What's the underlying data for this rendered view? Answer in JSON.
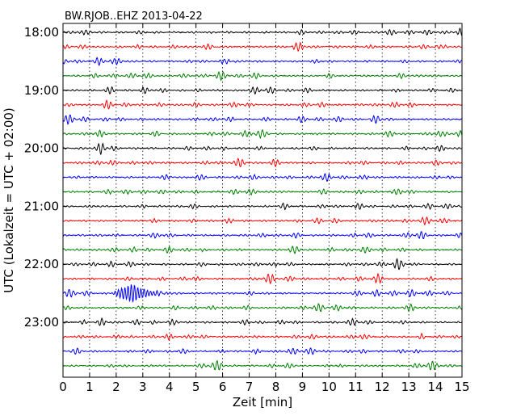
{
  "chart_data": {
    "type": "line",
    "title": "BW.RJOB..EHZ 2013-04-22",
    "xlabel": "Zeit  [min]",
    "ylabel": "UTC (Lokalzeit = UTC + 02:00)",
    "xlim": [
      0,
      15
    ],
    "xticks": [
      0,
      1,
      2,
      3,
      4,
      5,
      6,
      7,
      8,
      9,
      10,
      11,
      12,
      13,
      14,
      15
    ],
    "ytick_labels": [
      "18:00",
      "19:00",
      "20:00",
      "21:00",
      "22:00",
      "23:00"
    ],
    "grid": "vertical-dotted",
    "row_colors": [
      "#000000",
      "#ff0000",
      "#0000ff",
      "#008000"
    ],
    "row_start_times": [
      "18:00",
      "18:15",
      "18:30",
      "18:45",
      "19:00",
      "19:15",
      "19:30",
      "19:45",
      "20:00",
      "20:15",
      "20:30",
      "20:45",
      "21:00",
      "21:15",
      "21:30",
      "21:45",
      "22:00",
      "22:15",
      "22:30",
      "22:45",
      "23:00",
      "23:15",
      "23:30",
      "23:45"
    ],
    "event": {
      "row_start": "22:30",
      "onset_min": 1.8,
      "peak_min": 2.6,
      "end_min": 4.2,
      "peak_rel_amplitude": 1.0
    }
  }
}
